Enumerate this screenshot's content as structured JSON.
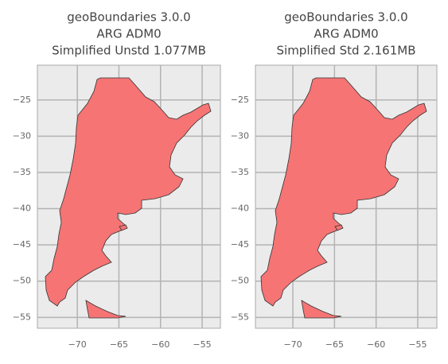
{
  "chart_data": [
    {
      "type": "map",
      "title": [
        "geoBoundaries 3.0.0",
        "ARG ADM0",
        "Simplified Unstd 1.077MB"
      ],
      "color": "#f67474",
      "xlim": [
        -74.8,
        -52.8
      ],
      "ylim": [
        -56.5,
        -20.2
      ],
      "grid": true,
      "xticks": [
        {
          "value": -70,
          "label": "−70"
        },
        {
          "value": -65,
          "label": "−65"
        },
        {
          "value": -60,
          "label": "−60"
        },
        {
          "value": -55,
          "label": "−55"
        }
      ],
      "yticks": [
        {
          "value": -25,
          "label": "−25"
        },
        {
          "value": -30,
          "label": "−30"
        },
        {
          "value": -35,
          "label": "−35"
        },
        {
          "value": -40,
          "label": "−40"
        },
        {
          "value": -45,
          "label": "−45"
        },
        {
          "value": -50,
          "label": "−50"
        },
        {
          "value": -55,
          "label": "−55"
        }
      ]
    },
    {
      "type": "map",
      "title": [
        "geoBoundaries 3.0.0",
        "ARG ADM0",
        "Simplified Std 2.161MB"
      ],
      "color": "#f67474",
      "xlim": [
        -74.5,
        -52.7
      ],
      "ylim": [
        -56.5,
        -20.2
      ],
      "grid": true,
      "xticks": [
        {
          "value": -70,
          "label": "−70"
        },
        {
          "value": -65,
          "label": "−65"
        },
        {
          "value": -60,
          "label": "−60"
        },
        {
          "value": -55,
          "label": "−55"
        }
      ],
      "yticks": [
        {
          "value": -25,
          "label": "−25"
        },
        {
          "value": -30,
          "label": "−30"
        },
        {
          "value": -35,
          "label": "−35"
        },
        {
          "value": -40,
          "label": "−40"
        },
        {
          "value": -45,
          "label": "−45"
        },
        {
          "value": -50,
          "label": "−50"
        },
        {
          "value": -55,
          "label": "−55"
        }
      ]
    }
  ]
}
